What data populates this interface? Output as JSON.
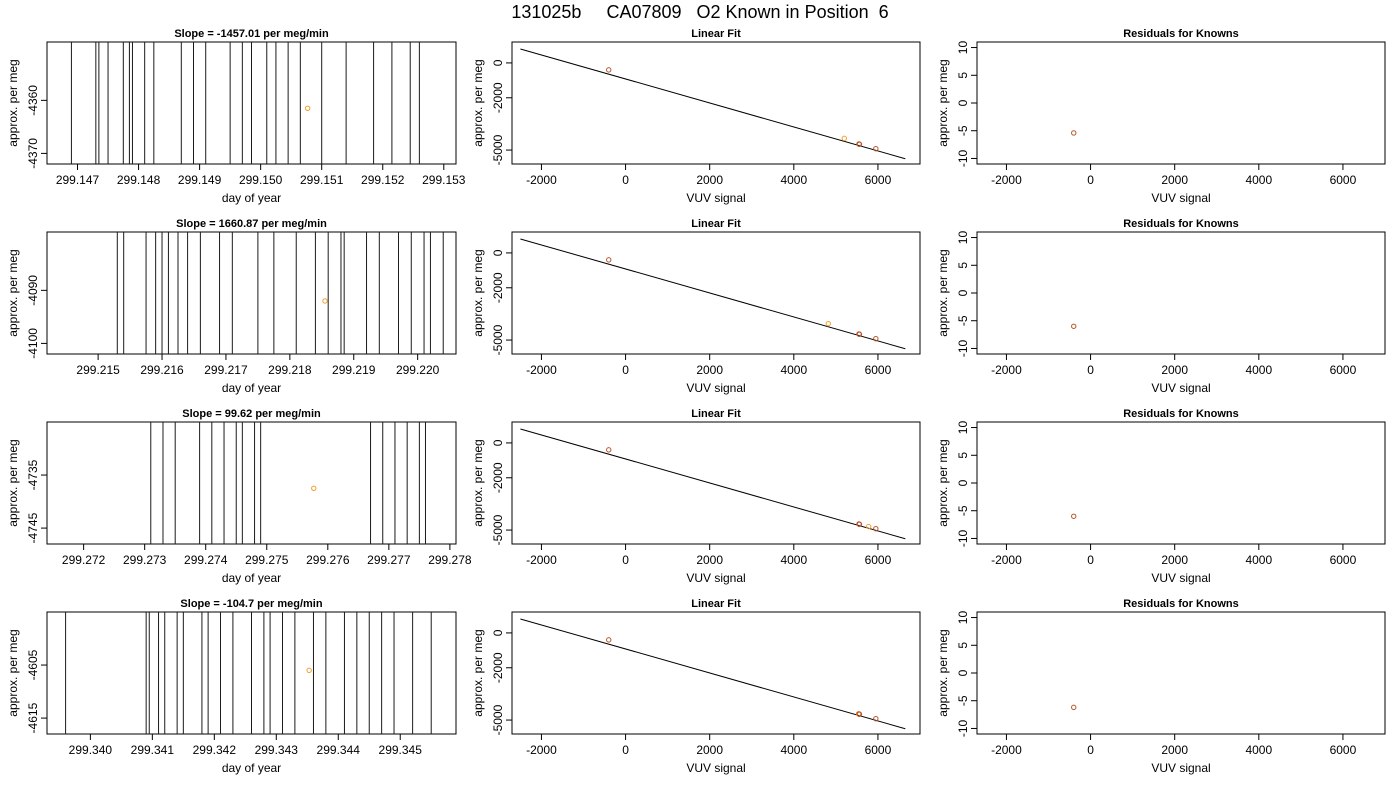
{
  "page": {
    "title": "131025b     CA07809   O2 Known in Position  6"
  },
  "colors": {
    "axis": "#000000",
    "trace": "#1a1a1a",
    "fit_line": "#000000",
    "known_point": "#b5532a",
    "unknown_point": "#f0a030",
    "background": "#ffffff"
  },
  "chart_data": [
    {
      "type": "line",
      "title": "Slope =  -1457.01  per meg/min",
      "xlabel": "day of year",
      "ylabel": "approx. per meg",
      "xlim": [
        299.1465,
        299.1532
      ],
      "ylim": [
        -4372,
        -4349
      ],
      "x_ticks": [
        "299.147",
        "299.148",
        "299.149",
        "299.150",
        "299.151",
        "299.152",
        "299.153"
      ],
      "y_ticks": [
        "-4360",
        "-4370"
      ],
      "trace_spikes_x": [
        299.1469,
        299.1473,
        299.14735,
        299.1475,
        299.14775,
        299.14785,
        299.1479,
        299.1481,
        299.14825,
        299.1487,
        299.1489,
        299.1491,
        299.1495,
        299.1497,
        299.14985,
        299.1501,
        299.15025,
        299.15045,
        299.15065,
        299.151,
        299.1514,
        299.15185,
        299.15215,
        299.15245,
        299.1526
      ],
      "marker": {
        "x": 299.15077,
        "y": -4361.5
      }
    },
    {
      "type": "scatter",
      "title": "Linear Fit",
      "xlabel": "VUV signal",
      "ylabel": "approx. per meg",
      "xlim": [
        -2700,
        7000
      ],
      "ylim": [
        -5800,
        1200
      ],
      "x_ticks": [
        "-2000",
        "0",
        "2000",
        "4000",
        "6000"
      ],
      "y_ticks": [
        "0",
        "-2000",
        "-5000"
      ],
      "fit_line": {
        "x": [
          -2500,
          6650
        ],
        "y": [
          800,
          -5500
        ]
      },
      "known_points": [
        {
          "x": -400,
          "y": -400
        },
        {
          "x": 5550,
          "y": -4650
        },
        {
          "x": 5560,
          "y": -4670
        },
        {
          "x": 5950,
          "y": -4920
        }
      ],
      "unknown_points": [
        {
          "x": 5200,
          "y": -4330
        }
      ]
    },
    {
      "type": "scatter",
      "title": "Residuals for Knowns",
      "xlabel": "VUV signal",
      "ylabel": "approx. per meg",
      "xlim": [
        -2700,
        7000
      ],
      "ylim": [
        -11,
        11
      ],
      "x_ticks": [
        "-2000",
        "0",
        "2000",
        "4000",
        "6000"
      ],
      "y_ticks": [
        "10",
        "5",
        "0",
        "-5",
        "-10"
      ],
      "known_points": [
        {
          "x": -400,
          "y": -5.4
        }
      ]
    },
    {
      "type": "line",
      "title": "Slope =  1660.87  per meg/min",
      "xlabel": "day of year",
      "ylabel": "approx. per meg",
      "xlim": [
        299.2142,
        299.2206
      ],
      "ylim": [
        -4102,
        -4079
      ],
      "x_ticks": [
        "299.215",
        "299.216",
        "299.217",
        "299.218",
        "299.219",
        "299.220"
      ],
      "y_ticks": [
        "-4090",
        "-4100"
      ],
      "trace_spikes_x": [
        299.2153,
        299.2154,
        299.21575,
        299.2159,
        299.216,
        299.2161,
        299.21625,
        299.2164,
        299.2166,
        299.2169,
        299.2171,
        299.2175,
        299.21775,
        299.2181,
        299.2184,
        299.2186,
        299.2188,
        299.21885,
        299.2192,
        299.2194,
        299.2197,
        299.2199,
        299.2201,
        299.2202,
        299.2204
      ],
      "marker": {
        "x": 299.21855,
        "y": -4092
      }
    },
    {
      "type": "scatter",
      "title": "Linear Fit",
      "xlabel": "VUV signal",
      "ylabel": "approx. per meg",
      "xlim": [
        -2700,
        7000
      ],
      "ylim": [
        -5800,
        1200
      ],
      "x_ticks": [
        "-2000",
        "0",
        "2000",
        "4000",
        "6000"
      ],
      "y_ticks": [
        "0",
        "-2000",
        "-5000"
      ],
      "fit_line": {
        "x": [
          -2500,
          6650
        ],
        "y": [
          800,
          -5500
        ]
      },
      "known_points": [
        {
          "x": -400,
          "y": -400
        },
        {
          "x": 5550,
          "y": -4650
        },
        {
          "x": 5560,
          "y": -4670
        },
        {
          "x": 5950,
          "y": -4920
        }
      ],
      "unknown_points": [
        {
          "x": 4820,
          "y": -4060
        }
      ]
    },
    {
      "type": "scatter",
      "title": "Residuals for Knowns",
      "xlabel": "VUV signal",
      "ylabel": "approx. per meg",
      "xlim": [
        -2700,
        7000
      ],
      "ylim": [
        -11,
        11
      ],
      "x_ticks": [
        "-2000",
        "0",
        "2000",
        "4000",
        "6000"
      ],
      "y_ticks": [
        "10",
        "5",
        "0",
        "-5",
        "-10"
      ],
      "known_points": [
        {
          "x": -400,
          "y": -6.0
        }
      ]
    },
    {
      "type": "line",
      "title": "Slope =  99.62  per meg/min",
      "xlabel": "day of year",
      "ylabel": "approx. per meg",
      "xlim": [
        299.2714,
        299.2781
      ],
      "ylim": [
        -4748,
        -4725
      ],
      "x_ticks": [
        "299.272",
        "299.273",
        "299.274",
        "299.275",
        "299.276",
        "299.277",
        "299.278"
      ],
      "y_ticks": [
        "-4735",
        "-4745"
      ],
      "trace_spikes_x": [
        299.2731,
        299.2733,
        299.2735,
        299.2739,
        299.2741,
        299.2743,
        299.2745,
        299.2746,
        299.2748,
        299.2749,
        299.2767,
        299.2769,
        299.2771,
        299.2773,
        299.2775,
        299.2776
      ],
      "marker": {
        "x": 299.27577,
        "y": -4737.5
      }
    },
    {
      "type": "scatter",
      "title": "Linear Fit",
      "xlabel": "VUV signal",
      "ylabel": "approx. per meg",
      "xlim": [
        -2700,
        7000
      ],
      "ylim": [
        -5800,
        1200
      ],
      "x_ticks": [
        "-2000",
        "0",
        "2000",
        "4000",
        "6000"
      ],
      "y_ticks": [
        "0",
        "-2000",
        "-5000"
      ],
      "fit_line": {
        "x": [
          -2500,
          6650
        ],
        "y": [
          800,
          -5500
        ]
      },
      "known_points": [
        {
          "x": -400,
          "y": -400
        },
        {
          "x": 5550,
          "y": -4650
        },
        {
          "x": 5560,
          "y": -4670
        },
        {
          "x": 5950,
          "y": -4920
        }
      ],
      "unknown_points": [
        {
          "x": 5780,
          "y": -4800
        }
      ]
    },
    {
      "type": "scatter",
      "title": "Residuals for Knowns",
      "xlabel": "VUV signal",
      "ylabel": "approx. per meg",
      "xlim": [
        -2700,
        7000
      ],
      "ylim": [
        -11,
        11
      ],
      "x_ticks": [
        "-2000",
        "0",
        "2000",
        "4000",
        "6000"
      ],
      "y_ticks": [
        "10",
        "5",
        "0",
        "-5",
        "-10"
      ],
      "known_points": [
        {
          "x": -400,
          "y": -6.0
        }
      ]
    },
    {
      "type": "line",
      "title": "Slope =  -104.7  per meg/min",
      "xlabel": "day of year",
      "ylabel": "approx. per meg",
      "xlim": [
        299.3393,
        299.3459
      ],
      "ylim": [
        -4618,
        -4595
      ],
      "x_ticks": [
        "299.340",
        "299.341",
        "299.342",
        "299.343",
        "299.344",
        "299.345"
      ],
      "y_ticks": [
        "-4605",
        "-4615"
      ],
      "trace_spikes_x": [
        299.3396,
        299.3409,
        299.34095,
        299.3411,
        299.3412,
        299.3414,
        299.3415,
        299.3418,
        299.3419,
        299.3421,
        299.3423,
        299.3426,
        299.3428,
        299.3429,
        299.3431,
        299.3433,
        299.3436,
        299.3438,
        299.3441,
        299.3443,
        299.3445,
        299.3447,
        299.3449,
        299.3452,
        299.3455
      ],
      "marker": {
        "x": 299.34353,
        "y": -4606
      }
    },
    {
      "type": "scatter",
      "title": "Linear Fit",
      "xlabel": "VUV signal",
      "ylabel": "approx. per meg",
      "xlim": [
        -2700,
        7000
      ],
      "ylim": [
        -5800,
        1200
      ],
      "x_ticks": [
        "-2000",
        "0",
        "2000",
        "4000",
        "6000"
      ],
      "y_ticks": [
        "0",
        "-2000",
        "-5000"
      ],
      "fit_line": {
        "x": [
          -2500,
          6650
        ],
        "y": [
          800,
          -5500
        ]
      },
      "known_points": [
        {
          "x": -400,
          "y": -400
        },
        {
          "x": 5550,
          "y": -4650
        },
        {
          "x": 5560,
          "y": -4670
        },
        {
          "x": 5950,
          "y": -4920
        }
      ],
      "unknown_points": [
        {
          "x": 5540,
          "y": -4640
        }
      ]
    },
    {
      "type": "scatter",
      "title": "Residuals for Knowns",
      "xlabel": "VUV signal",
      "ylabel": "approx. per meg",
      "xlim": [
        -2700,
        7000
      ],
      "ylim": [
        -11,
        11
      ],
      "x_ticks": [
        "-2000",
        "0",
        "2000",
        "4000",
        "6000"
      ],
      "y_ticks": [
        "10",
        "5",
        "0",
        "-5",
        "-10"
      ],
      "known_points": [
        {
          "x": -400,
          "y": -6.2
        }
      ]
    }
  ]
}
